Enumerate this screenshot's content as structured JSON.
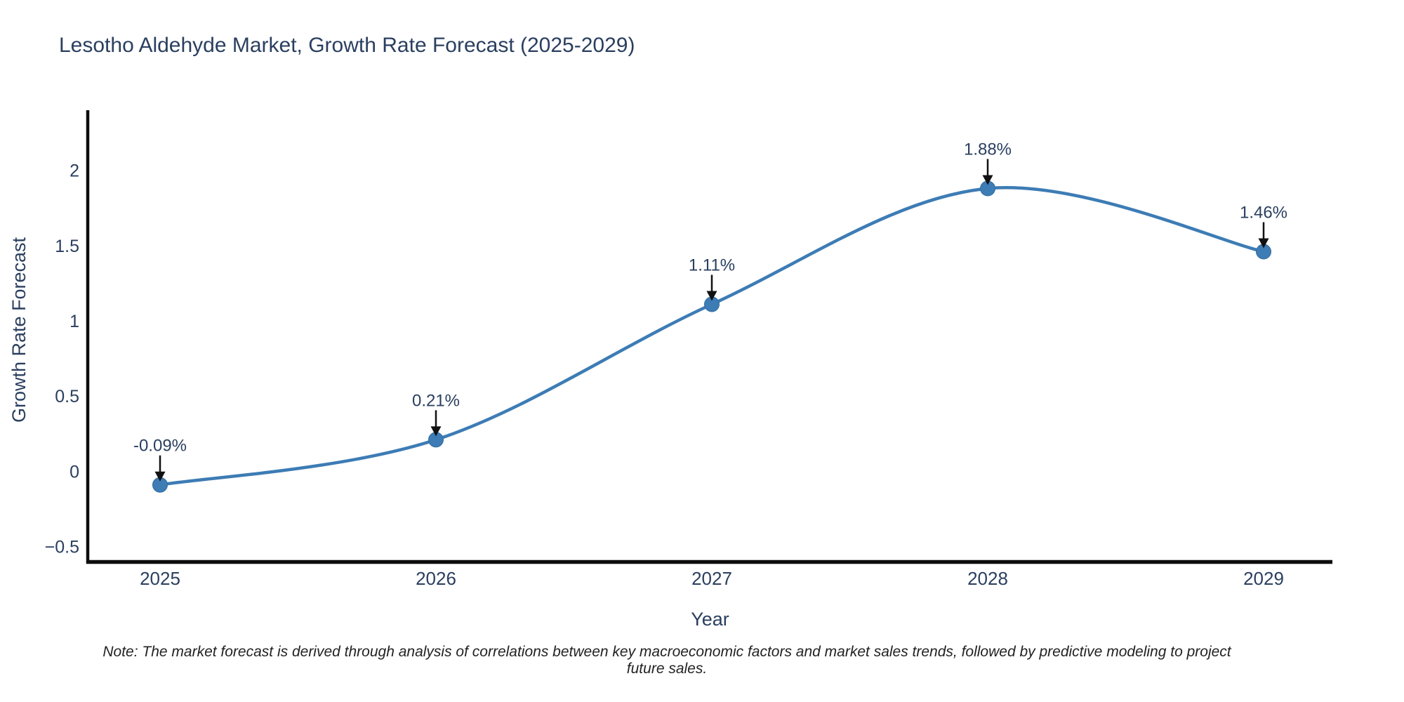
{
  "title": "Lesotho Aldehyde Market, Growth Rate Forecast (2025-2029)",
  "note": "Note: The market forecast is derived through analysis of correlations between key macroeconomic factors and market sales trends, followed by predictive modeling to project future sales.",
  "chart_data": {
    "type": "line",
    "title": "Lesotho Aldehyde Market, Growth Rate Forecast (2025-2029)",
    "xlabel": "Year",
    "ylabel": "Growth Rate Forecast",
    "categories": [
      "2025",
      "2026",
      "2027",
      "2028",
      "2029"
    ],
    "x": [
      2025,
      2026,
      2027,
      2028,
      2029
    ],
    "series": [
      {
        "name": "Growth Rate Forecast",
        "values": [
          -0.09,
          0.21,
          1.11,
          1.88,
          1.46
        ]
      }
    ],
    "point_labels": [
      "-0.09%",
      "0.21%",
      "1.11%",
      "1.88%",
      "1.46%"
    ],
    "yticks": [
      2,
      1.5,
      1,
      0.5,
      0,
      -0.5
    ],
    "ytick_labels": [
      "2",
      "1.5",
      "1",
      "0.5",
      "0",
      "−0.5"
    ],
    "ylim": [
      -0.6,
      2.4
    ],
    "grid": false,
    "legend": "none",
    "line_shape": "spline",
    "line_color": "#3d7cb5",
    "marker_color": "#3d7cb5",
    "marker_edge_color": "#336d9f",
    "axis_color": "#0d0d0d",
    "text_color": "#2a3f5f",
    "annotation_arrow_color": "#111111",
    "note_color": "#222222"
  }
}
